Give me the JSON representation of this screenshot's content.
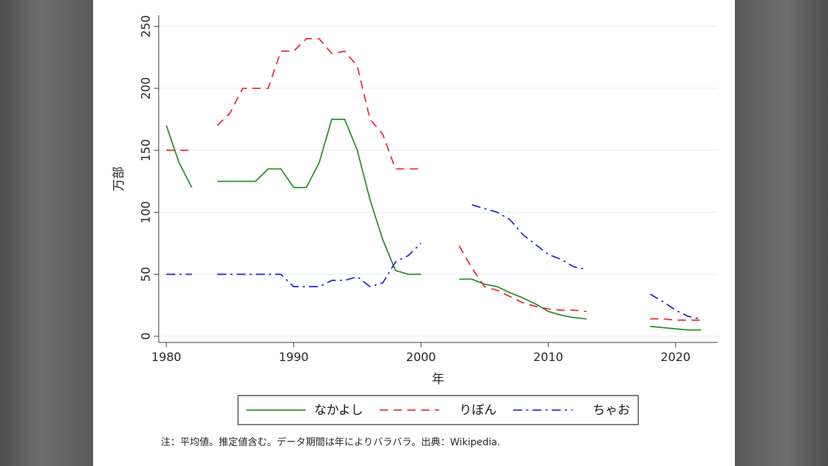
{
  "chart_data": {
    "type": "line",
    "title": "",
    "xlabel": "年",
    "ylabel": "万部",
    "xlim": [
      1979.4,
      2023.3
    ],
    "ylim": [
      -5,
      259
    ],
    "x_ticks": [
      1980,
      1990,
      2000,
      2010,
      2020
    ],
    "y_ticks": [
      0,
      50,
      100,
      150,
      200,
      250
    ],
    "grid": true,
    "legend_position": "bottom",
    "series": [
      {
        "name": "なかよし",
        "color": "#1e8a1e",
        "dash": "solid",
        "segments": [
          [
            [
              1980,
              170
            ],
            [
              1981,
              140
            ],
            [
              1982,
              120
            ]
          ],
          [
            [
              1984,
              125
            ],
            [
              1985,
              125
            ],
            [
              1986,
              125
            ],
            [
              1987,
              125
            ],
            [
              1988,
              135
            ],
            [
              1989,
              135
            ],
            [
              1990,
              120
            ],
            [
              1991,
              120
            ],
            [
              1992,
              140
            ],
            [
              1993,
              175
            ],
            [
              1994,
              175
            ],
            [
              1995,
              150
            ],
            [
              1996,
              110
            ],
            [
              1997,
              78
            ],
            [
              1998,
              53
            ],
            [
              1999,
              50
            ],
            [
              2000,
              50
            ]
          ],
          [
            [
              2003,
              46
            ],
            [
              2004,
              46
            ],
            [
              2005,
              42
            ],
            [
              2006,
              40
            ],
            [
              2007,
              35
            ],
            [
              2008,
              31
            ],
            [
              2009,
              26
            ],
            [
              2010,
              20
            ],
            [
              2011,
              17
            ],
            [
              2012,
              15
            ],
            [
              2013,
              14
            ]
          ],
          [
            [
              2018,
              8
            ],
            [
              2019,
              7
            ],
            [
              2020,
              6
            ],
            [
              2021,
              5
            ],
            [
              2022,
              5
            ]
          ]
        ]
      },
      {
        "name": "りぼん",
        "color": "#e8202a",
        "dash": "dashed",
        "segments": [
          [
            [
              1980,
              150
            ],
            [
              1981,
              150
            ],
            [
              1982,
              150
            ]
          ],
          [
            [
              1984,
              170
            ],
            [
              1985,
              180
            ],
            [
              1986,
              200
            ],
            [
              1987,
              200
            ],
            [
              1988,
              200
            ],
            [
              1989,
              230
            ],
            [
              1990,
              230
            ],
            [
              1991,
              240
            ],
            [
              1992,
              240
            ],
            [
              1993,
              228
            ],
            [
              1994,
              230
            ],
            [
              1995,
              218
            ],
            [
              1996,
              175
            ],
            [
              1997,
              163
            ],
            [
              1998,
              135
            ],
            [
              1999,
              135
            ],
            [
              2000,
              135
            ]
          ],
          [
            [
              2003,
              73
            ],
            [
              2004,
              55
            ],
            [
              2005,
              40
            ],
            [
              2006,
              37
            ],
            [
              2007,
              32
            ],
            [
              2008,
              27
            ],
            [
              2009,
              24
            ],
            [
              2010,
              22
            ],
            [
              2011,
              21
            ],
            [
              2012,
              21
            ],
            [
              2013,
              20
            ]
          ],
          [
            [
              2018,
              14
            ],
            [
              2019,
              14
            ],
            [
              2020,
              13
            ],
            [
              2021,
              13
            ],
            [
              2022,
              13
            ]
          ]
        ]
      },
      {
        "name": "ちゃお",
        "color": "#1c1cd8",
        "dash": "dashdot",
        "segments": [
          [
            [
              1980,
              50
            ],
            [
              1981,
              50
            ],
            [
              1982,
              50
            ]
          ],
          [
            [
              1984,
              50
            ],
            [
              1985,
              50
            ],
            [
              1986,
              50
            ],
            [
              1987,
              50
            ],
            [
              1988,
              50
            ],
            [
              1989,
              50
            ],
            [
              1990,
              40
            ],
            [
              1991,
              40
            ],
            [
              1992,
              40
            ],
            [
              1993,
              45
            ],
            [
              1994,
              45
            ],
            [
              1995,
              48
            ],
            [
              1996,
              40
            ],
            [
              1997,
              43
            ],
            [
              1998,
              60
            ],
            [
              1999,
              65
            ],
            [
              2000,
              75
            ]
          ],
          [
            [
              2004,
              106
            ],
            [
              2005,
              103
            ],
            [
              2006,
              100
            ],
            [
              2007,
              94
            ],
            [
              2008,
              82
            ],
            [
              2009,
              74
            ],
            [
              2010,
              66
            ],
            [
              2011,
              62
            ],
            [
              2012,
              56
            ],
            [
              2013,
              54
            ]
          ],
          [
            [
              2018,
              34
            ],
            [
              2019,
              28
            ],
            [
              2020,
              21
            ],
            [
              2021,
              16
            ],
            [
              2022,
              14
            ]
          ]
        ]
      }
    ]
  },
  "note": "注：平均値。推定値含む。データ期間は年によりバラバラ。出典：Wikipedia."
}
